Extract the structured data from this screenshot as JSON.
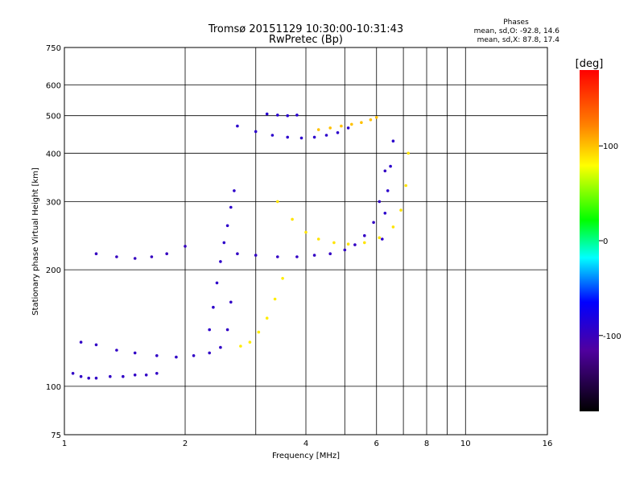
{
  "chart_data": {
    "type": "scatter",
    "title": "Tromsø 20151129 10:30:00-10:31:43",
    "subtitle": "RwPretec (Bp)",
    "xlabel": "Frequency [MHz]",
    "ylabel": "Stationary phase Virtual Height [km]",
    "x_scale": "log",
    "y_scale": "log",
    "xlim": [
      1,
      16
    ],
    "ylim": [
      75,
      750
    ],
    "x_ticks": [
      {
        "v": 1,
        "label": "1"
      },
      {
        "v": 2,
        "label": "2"
      },
      {
        "v": 4,
        "label": "4"
      },
      {
        "v": 6,
        "label": "6"
      },
      {
        "v": 8,
        "label": "8"
      },
      {
        "v": 10,
        "label": "10"
      },
      {
        "v": 16,
        "label": "16"
      }
    ],
    "x_grid": [
      1,
      2,
      3,
      4,
      5,
      6,
      7,
      8,
      9,
      10,
      16
    ],
    "y_ticks": [
      {
        "v": 75,
        "label": "75"
      },
      {
        "v": 100,
        "label": "100"
      },
      {
        "v": 200,
        "label": "200"
      },
      {
        "v": 300,
        "label": "300"
      },
      {
        "v": 400,
        "label": "400"
      },
      {
        "v": 500,
        "label": "500"
      },
      {
        "v": 600,
        "label": "600"
      },
      {
        "v": 750,
        "label": "750"
      }
    ],
    "y_grid": [
      75,
      100,
      200,
      300,
      400,
      500,
      600,
      750
    ],
    "stats": {
      "heading": "Phases",
      "line_o": "mean, sd,O: -92.8, 14.6",
      "line_x": "mean, sd,X:  87.8, 17.4"
    },
    "colorbar": {
      "label": "[deg]",
      "range": [
        -180,
        180
      ],
      "ticks": [
        {
          "v": 100,
          "label": "100"
        },
        {
          "v": 0,
          "label": "0"
        },
        {
          "v": -100,
          "label": "-100"
        }
      ]
    },
    "traces": [
      {
        "name": "",
        "phase": -95,
        "x": [
          1.05,
          1.1,
          1.15,
          1.2,
          1.3,
          1.4,
          1.5,
          1.6,
          1.7
        ],
        "y": [
          108,
          106,
          105,
          105,
          106,
          106,
          107,
          107,
          108
        ]
      },
      {
        "name": "",
        "phase": -95,
        "x": [
          1.1,
          1.2,
          1.35,
          1.5,
          1.7,
          1.9,
          2.1,
          2.3,
          2.45,
          2.55,
          2.6
        ],
        "y": [
          130,
          128,
          124,
          122,
          120,
          119,
          120,
          122,
          126,
          140,
          165
        ]
      },
      {
        "name": "",
        "phase": -93,
        "x": [
          2.3,
          2.35,
          2.4,
          2.45,
          2.5,
          2.55,
          2.6,
          2.65
        ],
        "y": [
          140,
          160,
          185,
          210,
          235,
          260,
          290,
          320
        ]
      },
      {
        "name": "",
        "phase": -98,
        "x": [
          1.2,
          1.35,
          1.5,
          1.65,
          1.8,
          2.0
        ],
        "y": [
          220,
          216,
          214,
          216,
          220,
          230
        ]
      },
      {
        "name": "",
        "phase": -96,
        "x": [
          2.7,
          3.0,
          3.4,
          3.8,
          4.2,
          4.6,
          5.0,
          5.3,
          5.6,
          5.9,
          6.1,
          6.3
        ],
        "y": [
          220,
          218,
          216,
          216,
          218,
          220,
          225,
          232,
          245,
          265,
          300,
          360
        ]
      },
      {
        "name": "",
        "phase": -92,
        "x": [
          6.2,
          6.3,
          6.4,
          6.5,
          6.6
        ],
        "y": [
          240,
          280,
          320,
          370,
          430
        ]
      },
      {
        "name": "",
        "phase": -92,
        "x": [
          2.7,
          3.0,
          3.3,
          3.6,
          3.9,
          4.2,
          4.5,
          4.8,
          5.1
        ],
        "y": [
          470,
          455,
          445,
          440,
          438,
          440,
          445,
          452,
          465
        ]
      },
      {
        "name": "",
        "phase": -90,
        "x": [
          3.2,
          3.4,
          3.6,
          3.8
        ],
        "y": [
          505,
          502,
          500,
          502
        ]
      },
      {
        "name": "",
        "phase": 85,
        "x": [
          2.75,
          2.9,
          3.05,
          3.2,
          3.35,
          3.5
        ],
        "y": [
          127,
          130,
          138,
          150,
          168,
          190
        ]
      },
      {
        "name": "",
        "phase": 88,
        "x": [
          3.4,
          3.7,
          4.0,
          4.3,
          4.7,
          5.1,
          5.6,
          6.1,
          6.6,
          6.9,
          7.1,
          7.2
        ],
        "y": [
          300,
          270,
          250,
          240,
          235,
          233,
          235,
          242,
          258,
          285,
          330,
          400
        ]
      },
      {
        "name": "",
        "phase": 100,
        "x": [
          4.3,
          4.6,
          4.9,
          5.2,
          5.5,
          5.8,
          6.0
        ],
        "y": [
          460,
          465,
          470,
          475,
          480,
          488,
          495
        ]
      }
    ]
  }
}
